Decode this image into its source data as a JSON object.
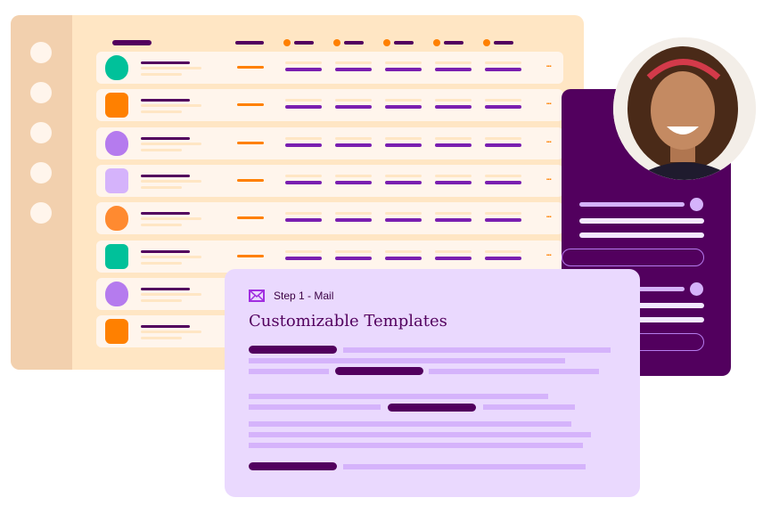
{
  "table": {
    "rows": [
      {
        "avatar_color": "#00c19a"
      },
      {
        "avatar_color": "#ff8000"
      },
      {
        "avatar_color": "#b57bee"
      },
      {
        "avatar_color": "#d5b3fb"
      },
      {
        "avatar_color": "#ff8a30"
      },
      {
        "avatar_color": "#00c19a"
      },
      {
        "avatar_color": "#b57bee"
      },
      {
        "avatar_color": "#ff8000"
      }
    ],
    "more_label": "...",
    "more_icon": "ellipsis-icon"
  },
  "mail_card": {
    "step_label": "Step 1 - Mail",
    "step_icon": "mail-icon",
    "title": "Customizable Templates"
  },
  "colors": {
    "cream": "#ffe6c4",
    "dark_purple": "#52005e",
    "purple": "#7a1fb0",
    "orange": "#ff8000",
    "lavender": "#ead9fe",
    "light_purple": "#d5b3fb"
  }
}
